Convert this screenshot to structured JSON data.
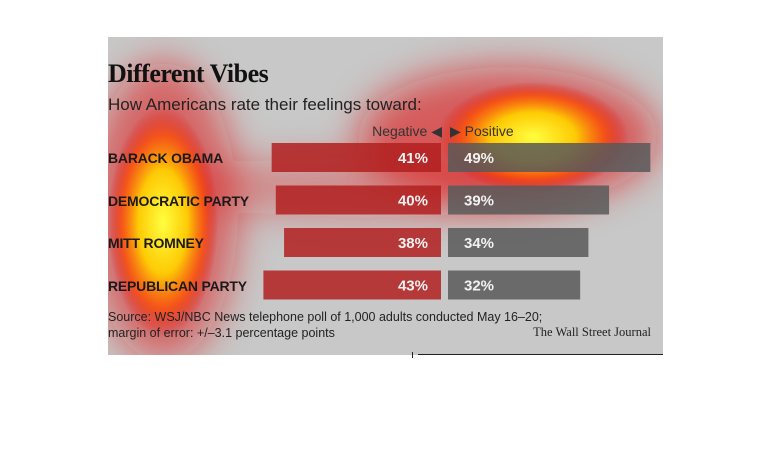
{
  "title": "Different Vibes",
  "subtitle": "How Americans rate their feelings toward:",
  "legend": {
    "negative": "Negative ◀",
    "positive": "▶ Positive"
  },
  "colors": {
    "negative": "#b22020",
    "positive": "#595959",
    "background": "#c8c8c8"
  },
  "chart_data": {
    "type": "bar",
    "orientation": "horizontal-diverging",
    "title": "Different Vibes",
    "subtitle": "How Americans rate their feelings toward:",
    "categories": [
      "BARACK OBAMA",
      "DEMOCRATIC PARTY",
      "MITT ROMNEY",
      "REPUBLICAN PARTY"
    ],
    "series": [
      {
        "name": "Negative",
        "values": [
          41,
          40,
          38,
          43
        ],
        "labels": [
          "41%",
          "40%",
          "38%",
          "43%"
        ]
      },
      {
        "name": "Positive",
        "values": [
          49,
          39,
          34,
          32
        ],
        "labels": [
          "49%",
          "39%",
          "34%",
          "32%"
        ]
      }
    ]
  },
  "source": {
    "line1": "Source: WSJ/NBC News telephone poll of 1,000 adults conducted May 16–20;",
    "line2": "margin of error: +/–3.1 percentage points"
  },
  "credit": "The Wall Street Journal"
}
